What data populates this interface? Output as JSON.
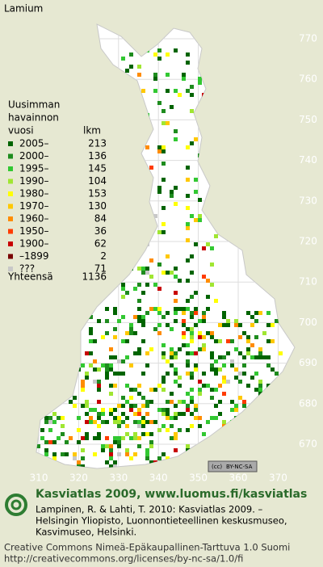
{
  "title": "Lamium",
  "legend": {
    "heading": [
      "Uusimman",
      "havainnon",
      "vuosi"
    ],
    "count_header": "lkm",
    "items": [
      {
        "label": "2005–",
        "count": 213,
        "color": "#006400"
      },
      {
        "label": "2000–",
        "count": 136,
        "color": "#1e8c1e"
      },
      {
        "label": "1995–",
        "count": 145,
        "color": "#32c832"
      },
      {
        "label": "1990–",
        "count": 104,
        "color": "#a0e632"
      },
      {
        "label": "1980–",
        "count": 153,
        "color": "#ffff00"
      },
      {
        "label": "1970–",
        "count": 130,
        "color": "#ffc800"
      },
      {
        "label": "1960–",
        "count": 84,
        "color": "#ff8c00"
      },
      {
        "label": "1950–",
        "count": 36,
        "color": "#ff3c00"
      },
      {
        "label": "1900–",
        "count": 62,
        "color": "#c80000"
      },
      {
        "label": "–1899",
        "count": 2,
        "color": "#780000"
      },
      {
        "label": "???",
        "count": 71,
        "color": "#c8c8c8"
      }
    ],
    "total_label": "Yhteensä",
    "total": 1136
  },
  "axes": {
    "y_labels": [
      770,
      760,
      750,
      740,
      730,
      720,
      710,
      700,
      690,
      680,
      670
    ],
    "x_labels": [
      310,
      320,
      330,
      340,
      350,
      360,
      370
    ]
  },
  "license_badge": "BY-NC-SA",
  "footer": {
    "site": "Kasviatlas 2009, www.luomus.fi/kasviatlas",
    "citation": [
      "Lampinen, R. & Lahti, T. 2010: Kasviatlas 2009. –",
      "Helsingin Yliopisto, Luonnontieteellinen keskusmuseo,",
      "Kasvimuseo, Helsinki."
    ],
    "license": [
      "Creative Commons Nimeä-Epäkaupallinen-Tarttuva 1.0 Suomi",
      "http://creativecommons.org/licenses/by-nc-sa/1.0/fi"
    ]
  }
}
